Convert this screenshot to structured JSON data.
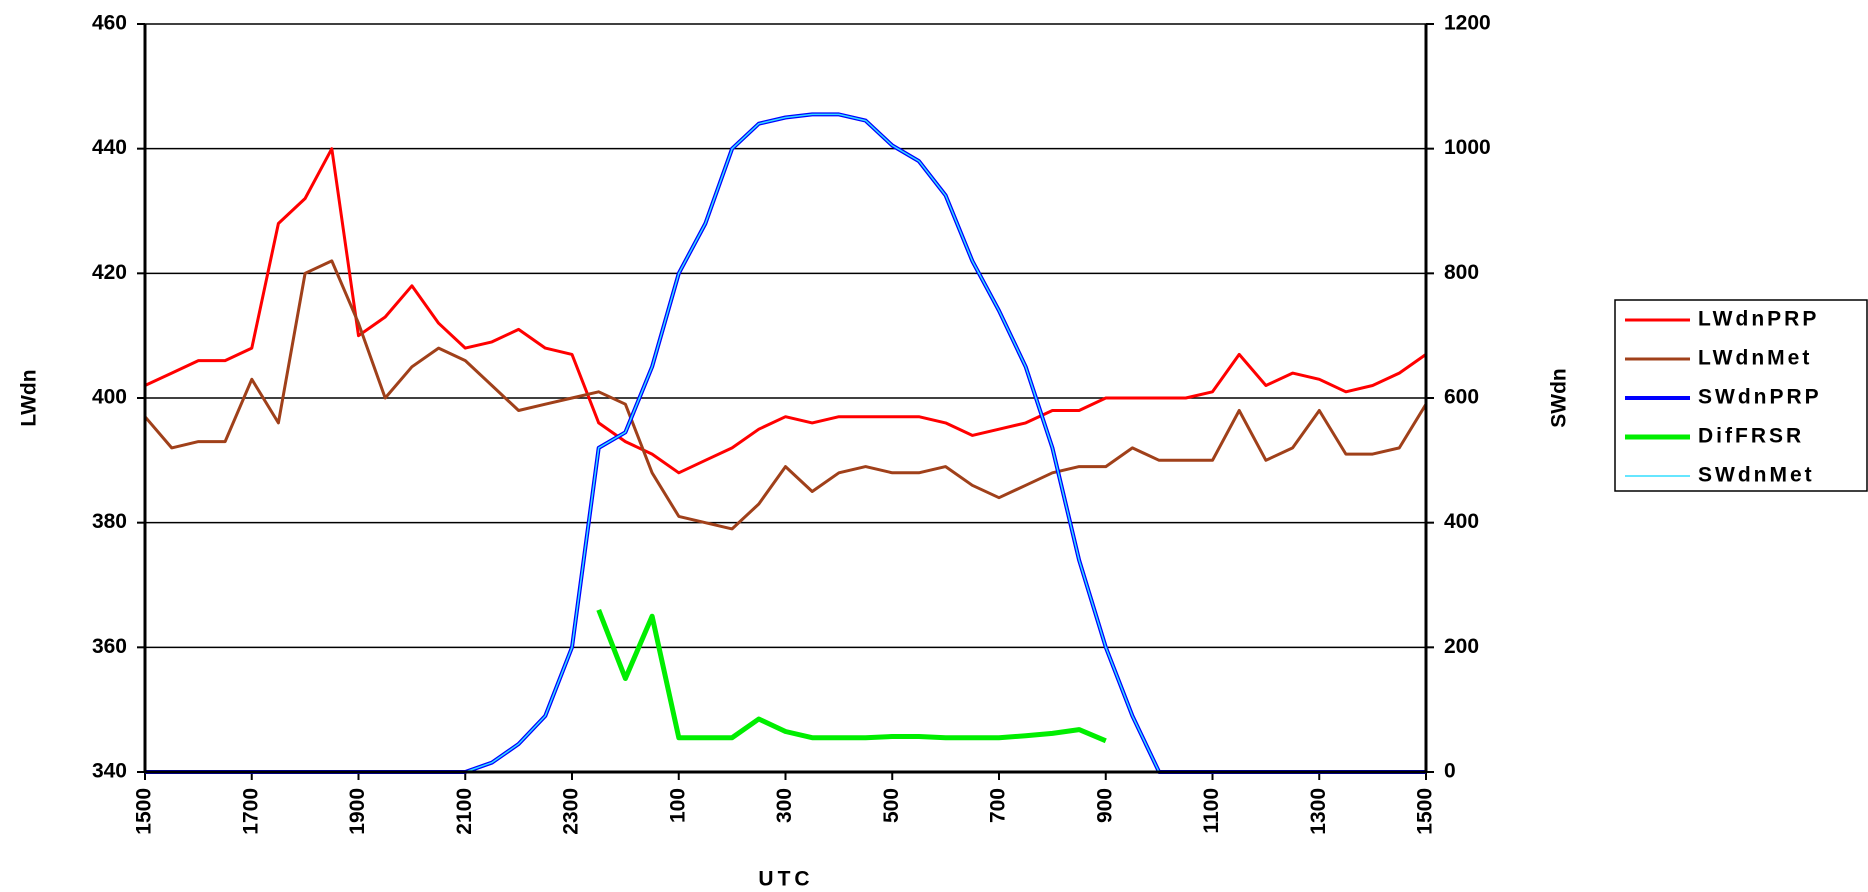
{
  "chart_data": {
    "type": "line",
    "x_label": "UTC",
    "y_label": "LWdn",
    "y2_label": "SWdn",
    "x": [
      0,
      0.5,
      1,
      1.5,
      2,
      2.5,
      3,
      3.5,
      4,
      4.5,
      5,
      5.5,
      6,
      6.5,
      7,
      7.5,
      8,
      8.5,
      9,
      9.5,
      10,
      10.5,
      11,
      11.5,
      12,
      12.5,
      13,
      13.5,
      14,
      14.5,
      15,
      15.5,
      16,
      16.5,
      17,
      17.5,
      18,
      18.5,
      19,
      19.5,
      20,
      20.5,
      21,
      21.5,
      22,
      22.5,
      23,
      23.5,
      24
    ],
    "xlim": [
      0,
      24
    ],
    "xticks": [
      {
        "value": 0,
        "label": "1500"
      },
      {
        "value": 2,
        "label": "1700"
      },
      {
        "value": 4,
        "label": "1900"
      },
      {
        "value": 6,
        "label": "2100"
      },
      {
        "value": 8,
        "label": "2300"
      },
      {
        "value": 10,
        "label": "100"
      },
      {
        "value": 12,
        "label": "300"
      },
      {
        "value": 14,
        "label": "500"
      },
      {
        "value": 16,
        "label": "700"
      },
      {
        "value": 18,
        "label": "900"
      },
      {
        "value": 20,
        "label": "1100"
      },
      {
        "value": 22,
        "label": "1300"
      },
      {
        "value": 24,
        "label": "1500"
      }
    ],
    "ylim": [
      340,
      460
    ],
    "yticks": [
      340,
      360,
      380,
      400,
      420,
      440,
      460
    ],
    "y2lim": [
      0,
      1200
    ],
    "y2ticks": [
      0,
      200,
      400,
      600,
      800,
      1000,
      1200
    ],
    "grid": true,
    "legend": "right",
    "series": [
      {
        "name": "LWdnPRP",
        "color": "#ff0000",
        "width": 3,
        "values": [
          402,
          404,
          406,
          406,
          408,
          428,
          432,
          440,
          410,
          413,
          418,
          412,
          408,
          409,
          411,
          408,
          407,
          396,
          393,
          391,
          388,
          390,
          392,
          395,
          397,
          396,
          397,
          397,
          397,
          397,
          396,
          394,
          395,
          396,
          398,
          398,
          400,
          400,
          400,
          400,
          401,
          407,
          402,
          404,
          403,
          401,
          402,
          404,
          407
        ]
      },
      {
        "name": "LWdnMet",
        "color": "#a0401a",
        "width": 3,
        "values": [
          397,
          392,
          393,
          393,
          403,
          396,
          420,
          422,
          412,
          400,
          405,
          408,
          406,
          402,
          398,
          399,
          400,
          401,
          399,
          388,
          381,
          380,
          379,
          383,
          389,
          385,
          388,
          389,
          388,
          388,
          389,
          386,
          384,
          386,
          388,
          389,
          389,
          392,
          390,
          390,
          390,
          398,
          390,
          392,
          398,
          391,
          391,
          392,
          399
        ]
      },
      {
        "name": "SWdnPRP",
        "color": "#0000ff",
        "width": 4,
        "axis": "y2",
        "values": [
          0,
          0,
          0,
          0,
          0,
          0,
          0,
          0,
          0,
          0,
          0,
          0,
          0,
          15,
          45,
          90,
          200,
          520,
          545,
          650,
          800,
          880,
          1000,
          1040,
          1050,
          1055,
          1055,
          1045,
          1005,
          980,
          925,
          820,
          740,
          650,
          520,
          340,
          200,
          90,
          0,
          0,
          0,
          0,
          0,
          0,
          0,
          0,
          0,
          0,
          0
        ]
      },
      {
        "name": "DifFRSR",
        "color": "#00ee00",
        "width": 5,
        "axis": "y2",
        "values": [
          null,
          null,
          null,
          null,
          null,
          null,
          null,
          null,
          null,
          null,
          null,
          null,
          null,
          null,
          null,
          null,
          null,
          260,
          150,
          250,
          55,
          55,
          55,
          85,
          65,
          55,
          55,
          55,
          57,
          57,
          55,
          55,
          55,
          58,
          62,
          68,
          50,
          null,
          null,
          null,
          null,
          null,
          null,
          null,
          null,
          null,
          null,
          null,
          null
        ]
      },
      {
        "name": "SWdnMet",
        "color": "#33ddff",
        "width": 1.5,
        "axis": "y2",
        "values": [
          0,
          0,
          0,
          0,
          0,
          0,
          0,
          0,
          0,
          0,
          0,
          0,
          0,
          15,
          45,
          90,
          200,
          520,
          545,
          650,
          800,
          880,
          1000,
          1040,
          1050,
          1055,
          1055,
          1045,
          1005,
          980,
          925,
          820,
          740,
          650,
          520,
          340,
          200,
          90,
          0,
          0,
          0,
          0,
          0,
          0,
          0,
          0,
          0,
          0,
          0
        ]
      }
    ]
  }
}
